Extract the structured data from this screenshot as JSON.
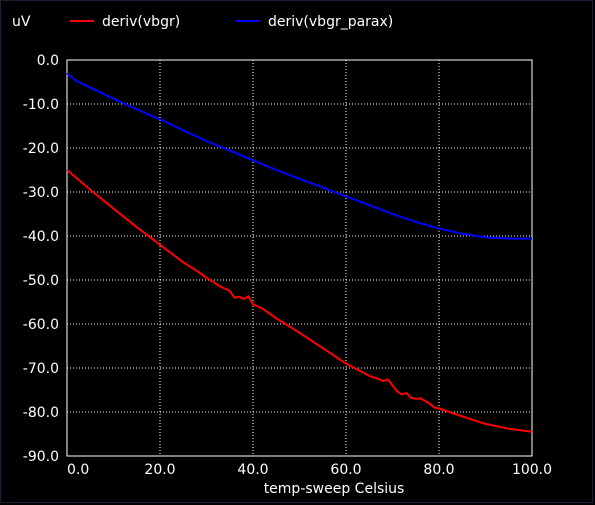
{
  "chart_data": {
    "type": "line",
    "ylabel": "uV",
    "xlabel": "temp-sweep  Celsius",
    "xlim": [
      0,
      100
    ],
    "ylim": [
      -90,
      0
    ],
    "x_ticks": [
      0,
      20,
      40,
      60,
      80,
      100
    ],
    "x_tick_labels": [
      "0.0",
      "20.0",
      "40.0",
      "60.0",
      "80.0",
      "100.0"
    ],
    "y_ticks": [
      0,
      -10,
      -20,
      -30,
      -40,
      -50,
      -60,
      -70,
      -80,
      -90
    ],
    "y_tick_labels": [
      "0.0",
      "-10.0",
      "-20.0",
      "-30.0",
      "-40.0",
      "-50.0",
      "-60.0",
      "-70.0",
      "-80.0",
      "-90.0"
    ],
    "grid": true,
    "legend_position": "top",
    "series": [
      {
        "name": "deriv(vbgr)",
        "color": "#ff0000",
        "x": [
          0,
          5,
          10,
          15,
          20,
          25,
          28,
          30,
          33,
          35,
          36,
          37,
          38,
          39,
          40,
          42,
          45,
          50,
          55,
          60,
          65,
          67,
          68,
          69,
          70,
          71,
          72,
          73,
          74,
          75,
          76,
          77,
          78,
          79,
          80,
          85,
          90,
          95,
          100
        ],
        "values": [
          -25.0,
          -29.5,
          -33.8,
          -38.0,
          -42.0,
          -46.0,
          -48.0,
          -49.5,
          -51.5,
          -52.5,
          -54.0,
          -53.8,
          -54.3,
          -53.7,
          -55.5,
          -56.5,
          -58.7,
          -62.0,
          -65.5,
          -69.0,
          -71.8,
          -72.5,
          -73.0,
          -72.6,
          -74.0,
          -75.3,
          -76.0,
          -75.7,
          -76.8,
          -77.0,
          -76.9,
          -77.5,
          -78.1,
          -79.0,
          -79.2,
          -81.0,
          -82.7,
          -83.8,
          -84.5
        ]
      },
      {
        "name": "deriv(vbgr_parax)",
        "color": "#0000ff",
        "x": [
          0,
          2,
          5,
          10,
          15,
          20,
          25,
          30,
          35,
          40,
          45,
          50,
          55,
          60,
          65,
          70,
          75,
          80,
          85,
          90,
          95,
          100
        ],
        "values": [
          -3.0,
          -4.8,
          -6.3,
          -8.8,
          -11.2,
          -13.5,
          -16.0,
          -18.4,
          -20.6,
          -22.8,
          -25.0,
          -27.0,
          -29.0,
          -31.0,
          -33.0,
          -35.0,
          -36.8,
          -38.3,
          -39.5,
          -40.3,
          -40.6,
          -40.6
        ]
      }
    ]
  }
}
